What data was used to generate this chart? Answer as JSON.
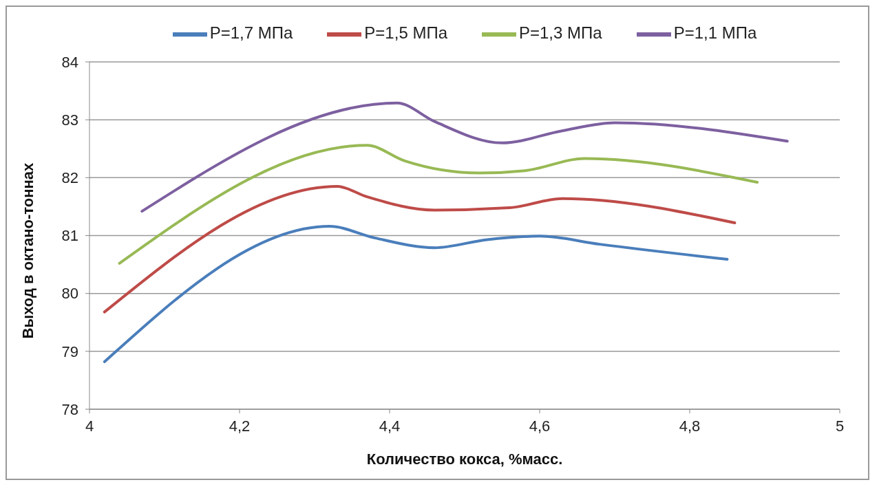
{
  "chart_data": {
    "type": "line",
    "xlabel": "Количество кокса, %масс.",
    "ylabel": "Выход в октано-тоннах",
    "xlim": [
      4,
      5
    ],
    "xticks": [
      4,
      {
        "value": 4.2,
        "label": "4,2"
      },
      {
        "value": 4.4,
        "label": "4,4"
      },
      {
        "value": 4.6,
        "label": "4,6"
      },
      {
        "value": 4.8,
        "label": "4,8"
      },
      5
    ],
    "ylim": [
      78,
      84
    ],
    "yticks": [
      78,
      79,
      80,
      81,
      82,
      83,
      84
    ],
    "grid": "y",
    "legend": "top",
    "marker": "none",
    "line_style": "solid",
    "series": [
      {
        "name": "P=1,7 МПа",
        "color": "#4a7ebb",
        "x": [
          4.02,
          4.32,
          4.38,
          4.46,
          4.53,
          4.6,
          4.68,
          4.85
        ],
        "values": [
          78.82,
          81.16,
          80.96,
          80.79,
          80.93,
          80.99,
          80.85,
          80.59
        ]
      },
      {
        "name": "P=1,5 МПа",
        "color": "#be4b48",
        "x": [
          4.02,
          4.33,
          4.37,
          4.46,
          4.56,
          4.63,
          4.86
        ],
        "values": [
          79.68,
          81.85,
          81.67,
          81.44,
          81.48,
          81.64,
          81.22
        ]
      },
      {
        "name": "P=1,3 МПа",
        "color": "#98b954",
        "x": [
          4.04,
          4.37,
          4.42,
          4.52,
          4.58,
          4.66,
          4.89
        ],
        "values": [
          80.52,
          82.56,
          82.29,
          82.08,
          82.12,
          82.33,
          81.92
        ]
      },
      {
        "name": "P=1,1 МПа",
        "color": "#7d60a0",
        "x": [
          4.07,
          4.41,
          4.46,
          4.55,
          4.63,
          4.7,
          4.93
        ],
        "values": [
          81.42,
          83.29,
          82.97,
          82.6,
          82.81,
          82.95,
          82.63
        ]
      }
    ]
  }
}
